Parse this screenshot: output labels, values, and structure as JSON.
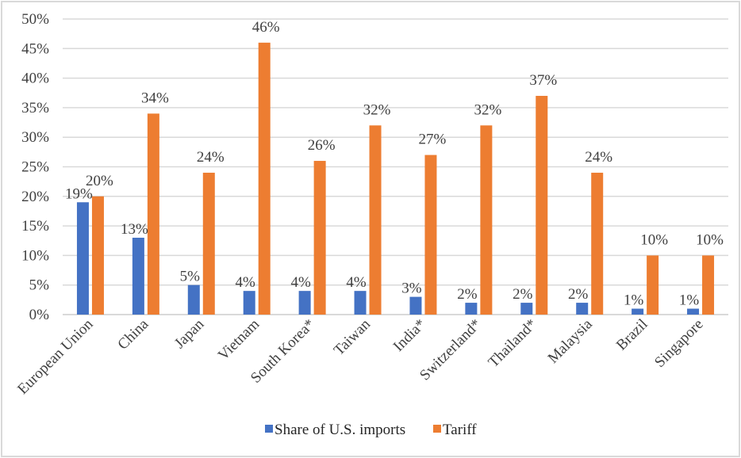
{
  "chart_data": {
    "type": "bar",
    "title": "",
    "xlabel": "",
    "ylabel": "",
    "ylim": [
      0,
      0.5
    ],
    "y_ticks": [
      "0%",
      "5%",
      "10%",
      "15%",
      "20%",
      "25%",
      "30%",
      "35%",
      "40%",
      "45%",
      "50%"
    ],
    "grid": true,
    "legend_position": "bottom",
    "categories": [
      "European Union",
      "China",
      "Japan",
      "Vietnam",
      "South Korea*",
      "Taiwan",
      "India*",
      "Switzerland*",
      "Thailand*",
      "Malaysia",
      "Brazil",
      "Singapore"
    ],
    "series": [
      {
        "name": "Share of U.S. imports",
        "color": "#4472c4",
        "values": [
          0.19,
          0.13,
          0.05,
          0.04,
          0.04,
          0.04,
          0.03,
          0.02,
          0.02,
          0.02,
          0.01,
          0.01
        ],
        "labels": [
          "19%",
          "13%",
          "5%",
          "4%",
          "4%",
          "4%",
          "3%",
          "2%",
          "2%",
          "2%",
          "1%",
          "1%"
        ]
      },
      {
        "name": "Tariff",
        "color": "#ed7d31",
        "values": [
          0.2,
          0.34,
          0.24,
          0.46,
          0.26,
          0.32,
          0.27,
          0.32,
          0.37,
          0.24,
          0.1,
          0.1
        ],
        "labels": [
          "20%",
          "34%",
          "24%",
          "46%",
          "26%",
          "32%",
          "27%",
          "32%",
          "37%",
          "24%",
          "10%",
          "10%"
        ]
      }
    ]
  }
}
